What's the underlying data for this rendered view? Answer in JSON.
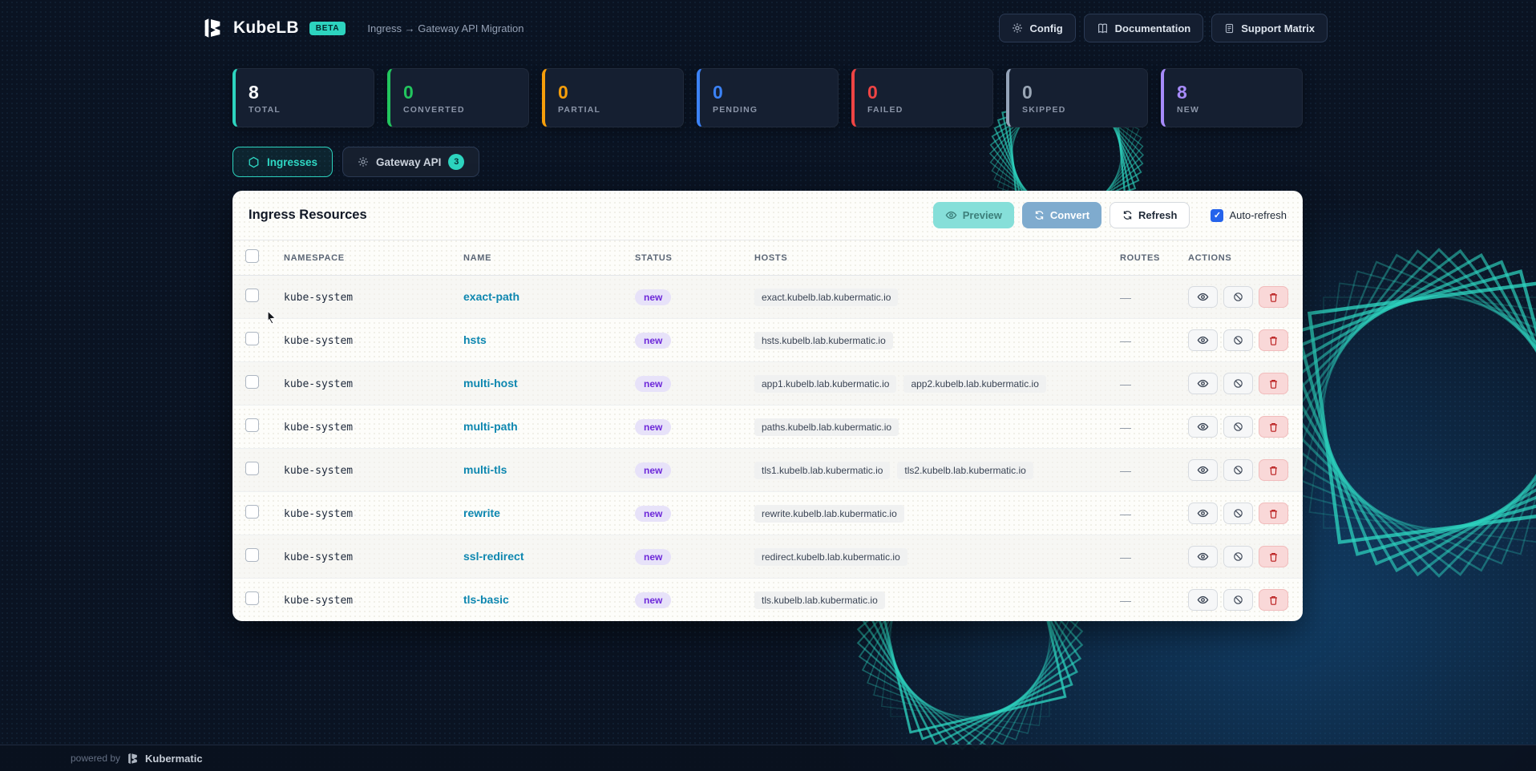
{
  "header": {
    "brand": "KubeLB",
    "beta_badge": "BETA",
    "breadcrumb": "Ingress → Gateway API Migration",
    "buttons": [
      {
        "label": "Config",
        "icon": "gear-icon"
      },
      {
        "label": "Documentation",
        "icon": "book-icon"
      },
      {
        "label": "Support Matrix",
        "icon": "file-icon"
      }
    ]
  },
  "stats": [
    {
      "label": "TOTAL",
      "value": "8",
      "accent": "#2dd4bf",
      "value_color": "#f8fafc"
    },
    {
      "label": "CONVERTED",
      "value": "0",
      "accent": "#22c55e",
      "value_color": "#22c55e"
    },
    {
      "label": "PARTIAL",
      "value": "0",
      "accent": "#f59e0b",
      "value_color": "#f59e0b"
    },
    {
      "label": "PENDING",
      "value": "0",
      "accent": "#3b82f6",
      "value_color": "#3b82f6"
    },
    {
      "label": "FAILED",
      "value": "0",
      "accent": "#ef4444",
      "value_color": "#ef4444"
    },
    {
      "label": "SKIPPED",
      "value": "0",
      "accent": "#94a3b8",
      "value_color": "#9aa6b5"
    },
    {
      "label": "NEW",
      "value": "8",
      "accent": "#a78bfa",
      "value_color": "#a78bfa"
    }
  ],
  "tabs": [
    {
      "label": "Ingresses",
      "icon": "hexagon-icon",
      "active": true
    },
    {
      "label": "Gateway API",
      "icon": "gear-icon",
      "badge": "3",
      "active": false
    }
  ],
  "panel": {
    "title": "Ingress Resources",
    "preview_label": "Preview",
    "convert_label": "Convert",
    "refresh_label": "Refresh",
    "auto_refresh_label": "Auto-refresh",
    "auto_refresh_checked": true,
    "check_glyph": "✓"
  },
  "table": {
    "columns": [
      "NAMESPACE",
      "NAME",
      "STATUS",
      "HOSTS",
      "ROUTES",
      "ACTIONS"
    ],
    "rows": [
      {
        "namespace": "kube-system",
        "name": "exact-path",
        "status": "new",
        "hosts": [
          "exact.kubelb.lab.kubermatic.io"
        ],
        "routes": "—"
      },
      {
        "namespace": "kube-system",
        "name": "hsts",
        "status": "new",
        "hosts": [
          "hsts.kubelb.lab.kubermatic.io"
        ],
        "routes": "—"
      },
      {
        "namespace": "kube-system",
        "name": "multi-host",
        "status": "new",
        "hosts": [
          "app1.kubelb.lab.kubermatic.io",
          "app2.kubelb.lab.kubermatic.io"
        ],
        "routes": "—"
      },
      {
        "namespace": "kube-system",
        "name": "multi-path",
        "status": "new",
        "hosts": [
          "paths.kubelb.lab.kubermatic.io"
        ],
        "routes": "—"
      },
      {
        "namespace": "kube-system",
        "name": "multi-tls",
        "status": "new",
        "hosts": [
          "tls1.kubelb.lab.kubermatic.io",
          "tls2.kubelb.lab.kubermatic.io"
        ],
        "routes": "—"
      },
      {
        "namespace": "kube-system",
        "name": "rewrite",
        "status": "new",
        "hosts": [
          "rewrite.kubelb.lab.kubermatic.io"
        ],
        "routes": "—"
      },
      {
        "namespace": "kube-system",
        "name": "ssl-redirect",
        "status": "new",
        "hosts": [
          "redirect.kubelb.lab.kubermatic.io"
        ],
        "routes": "—"
      },
      {
        "namespace": "kube-system",
        "name": "tls-basic",
        "status": "new",
        "hosts": [
          "tls.kubelb.lab.kubermatic.io"
        ],
        "routes": "—"
      }
    ]
  },
  "footer": {
    "powered_by": "powered by",
    "brand": "Kubermatic"
  },
  "colors": {
    "accent_teal": "#2dd4bf",
    "background_navy": "#0a1322",
    "status_badge_text": "#6d28d9",
    "status_badge_bg": "#e7e2f9",
    "name_link": "#0e87b0",
    "preview_bg": "#86dfd9",
    "convert_bg": "#7fabce",
    "auto_refresh_checkbox": "#2563eb",
    "delete_red": "#b91c1c"
  }
}
